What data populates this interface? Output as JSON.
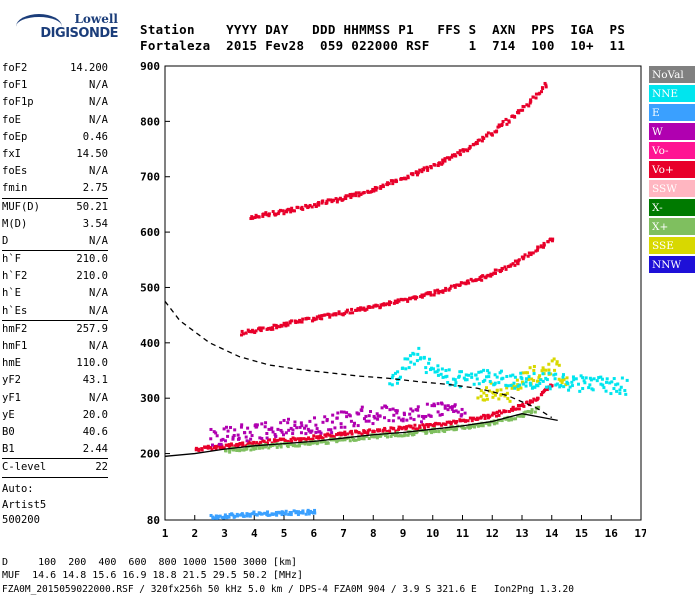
{
  "logo": {
    "line1": "Lowell",
    "line2": "DIGISONDE"
  },
  "header": {
    "line1": "Station    YYYY DAY   DDD HHMMSS P1   FFS S  AXN  PPS  IGA  PS",
    "line2": "Fortaleza  2015 Fev28  059 022000 RSF     1  714  100  10+  11"
  },
  "params": [
    {
      "k": "foF2",
      "v": "14.200",
      "sep": false
    },
    {
      "k": "foF1",
      "v": "N/A",
      "sep": false
    },
    {
      "k": "foF1p",
      "v": "N/A",
      "sep": false
    },
    {
      "k": "foE",
      "v": "N/A",
      "sep": false
    },
    {
      "k": "foEp",
      "v": "0.46",
      "sep": false
    },
    {
      "k": "fxI",
      "v": "14.50",
      "sep": false
    },
    {
      "k": "foEs",
      "v": "N/A",
      "sep": false
    },
    {
      "k": "fmin",
      "v": "2.75",
      "sep": true
    },
    {
      "k": "MUF(D)",
      "v": "50.21",
      "sep": false
    },
    {
      "k": "M(D)",
      "v": "3.54",
      "sep": false
    },
    {
      "k": "D",
      "v": "N/A",
      "sep": true
    },
    {
      "k": "h`F",
      "v": "210.0",
      "sep": false
    },
    {
      "k": "h`F2",
      "v": "210.0",
      "sep": false
    },
    {
      "k": "h`E",
      "v": "N/A",
      "sep": false
    },
    {
      "k": "h`Es",
      "v": "N/A",
      "sep": true
    },
    {
      "k": "hmF2",
      "v": "257.9",
      "sep": false
    },
    {
      "k": "hmF1",
      "v": "N/A",
      "sep": false
    },
    {
      "k": "hmE",
      "v": "110.0",
      "sep": false
    },
    {
      "k": "yF2",
      "v": "43.1",
      "sep": false
    },
    {
      "k": "yF1",
      "v": "N/A",
      "sep": false
    },
    {
      "k": "yE",
      "v": "20.0",
      "sep": false
    },
    {
      "k": "B0",
      "v": "40.6",
      "sep": false
    },
    {
      "k": "B1",
      "v": "2.44",
      "sep": true
    },
    {
      "k": "C-level",
      "v": "22",
      "sep": true
    }
  ],
  "auto": {
    "line1": "Auto:",
    "line2": "Artist5",
    "line3": "500200"
  },
  "legend": [
    {
      "label": "NoVal",
      "color": "#808080"
    },
    {
      "label": "NNE",
      "color": "#00e5ee"
    },
    {
      "label": "E",
      "color": "#3aa0ff"
    },
    {
      "label": "W",
      "color": "#b000b0"
    },
    {
      "label": "Vo-",
      "color": "#ff1493"
    },
    {
      "label": "Vo+",
      "color": "#e8002a"
    },
    {
      "label": "SSW",
      "color": "#ffb6c1"
    },
    {
      "label": "X-",
      "color": "#007a00"
    },
    {
      "label": "X+",
      "color": "#7fbf5f"
    },
    {
      "label": "SSE",
      "color": "#d8d800"
    },
    {
      "label": "NNW",
      "color": "#1e10d8"
    }
  ],
  "footer": {
    "line1": "D     100  200  400  600  800 1000 1500 3000 [km]",
    "line2": "MUF  14.6 14.8 15.6 16.9 18.8 21.5 29.5 50.2 [MHz]",
    "line3": "FZA0M_2015059022000.RSF / 320fx256h 50 kHz 5.0 km / DPS-4 FZA0M 904 / 3.9 S 321.6 E   Ion2Png 1.3.20"
  },
  "chart_data": {
    "type": "scatter",
    "title": "",
    "xlabel": "",
    "ylabel": "",
    "xlim": [
      1,
      17
    ],
    "ylim": [
      80,
      900
    ],
    "xticks": [
      1,
      2,
      3,
      4,
      5,
      6,
      7,
      8,
      9,
      10,
      11,
      12,
      13,
      14,
      15,
      16,
      17
    ],
    "yticks": [
      80,
      200,
      300,
      400,
      500,
      600,
      700,
      800,
      900
    ],
    "traces": [
      {
        "name": "F2 O-trace",
        "color": "#e8002a",
        "x": [
          2.0,
          3.0,
          4.0,
          5.0,
          6.0,
          7.0,
          8.0,
          9.0,
          10.0,
          11.0,
          12.0,
          12.5,
          13.0,
          13.5,
          14.0
        ],
        "y": [
          210,
          216,
          222,
          226,
          232,
          238,
          244,
          248,
          254,
          262,
          272,
          280,
          290,
          304,
          326
        ]
      },
      {
        "name": "F2 X-trace",
        "color": "#7fbf5f",
        "x": [
          3.0,
          4.0,
          5.0,
          6.0,
          7.0,
          8.0,
          9.0,
          10.0,
          11.0,
          12.0,
          13.0,
          13.5
        ],
        "y": [
          208,
          214,
          218,
          222,
          228,
          234,
          238,
          244,
          250,
          258,
          272,
          284
        ]
      },
      {
        "name": "2F multiple",
        "color": "#e8002a",
        "x": [
          3.5,
          4.5,
          5.5,
          6.5,
          7.5,
          8.5,
          9.5,
          10.5,
          11.5,
          12.5,
          13.5,
          14.0
        ],
        "y": [
          420,
          430,
          442,
          452,
          462,
          474,
          486,
          500,
          518,
          540,
          572,
          592
        ]
      },
      {
        "name": "3F multiple",
        "color": "#e8002a",
        "x": [
          3.8,
          5.0,
          6.0,
          7.0,
          8.0,
          9.0,
          10.0,
          11.0,
          12.0,
          13.0,
          13.8
        ],
        "y": [
          630,
          640,
          652,
          664,
          680,
          700,
          722,
          750,
          784,
          826,
          870
        ]
      },
      {
        "name": "Es layer",
        "color": "#3aa0ff",
        "x": [
          2.5,
          3.0,
          3.5,
          4.0,
          4.5,
          5.0,
          5.5,
          6.0
        ],
        "y": [
          88,
          90,
          92,
          94,
          94,
          96,
          96,
          97
        ]
      },
      {
        "name": "W spread",
        "color": "#b000b0",
        "x": [
          2.5,
          3.5,
          4.5,
          5.5,
          6.5,
          7.5,
          8.5,
          9.5,
          10.5,
          11.0
        ],
        "y": [
          232,
          240,
          246,
          252,
          256,
          270,
          274,
          276,
          280,
          282
        ]
      },
      {
        "name": "SSE spread",
        "color": "#d8d800",
        "x": [
          11.5,
          12.0,
          12.5,
          13.0,
          13.5,
          14.0,
          14.5
        ],
        "y": [
          300,
          320,
          310,
          340,
          350,
          360,
          330
        ]
      },
      {
        "name": "NNE spread",
        "color": "#00e5ee",
        "x": [
          8.5,
          9.0,
          9.5,
          10.0,
          10.5,
          15.0,
          15.5,
          16.5
        ],
        "y": [
          330,
          360,
          380,
          350,
          340,
          330,
          328,
          325
        ]
      }
    ],
    "profile_dashed": {
      "x": [
        1.0,
        1.5,
        2.5,
        3.5,
        4.5,
        5.5,
        6.5,
        7.5,
        8.5,
        9.5,
        10.5,
        11.5,
        12.5,
        13.5,
        14.0
      ],
      "y": [
        475,
        440,
        400,
        375,
        360,
        352,
        346,
        340,
        336,
        330,
        325,
        318,
        305,
        282,
        265
      ]
    },
    "profile_solid": {
      "x": [
        1.0,
        2.0,
        3.0,
        4.0,
        5.0,
        6.0,
        7.0,
        8.0,
        9.0,
        10.0,
        11.0,
        12.0,
        13.0,
        13.8,
        14.2
      ],
      "y": [
        195,
        200,
        208,
        214,
        218,
        222,
        228,
        234,
        238,
        244,
        250,
        258,
        272,
        264,
        260
      ]
    },
    "series_colors_legend": [
      "NoVal",
      "NNE",
      "E",
      "W",
      "Vo-",
      "Vo+",
      "SSW",
      "X-",
      "X+",
      "SSE",
      "NNW"
    ]
  }
}
